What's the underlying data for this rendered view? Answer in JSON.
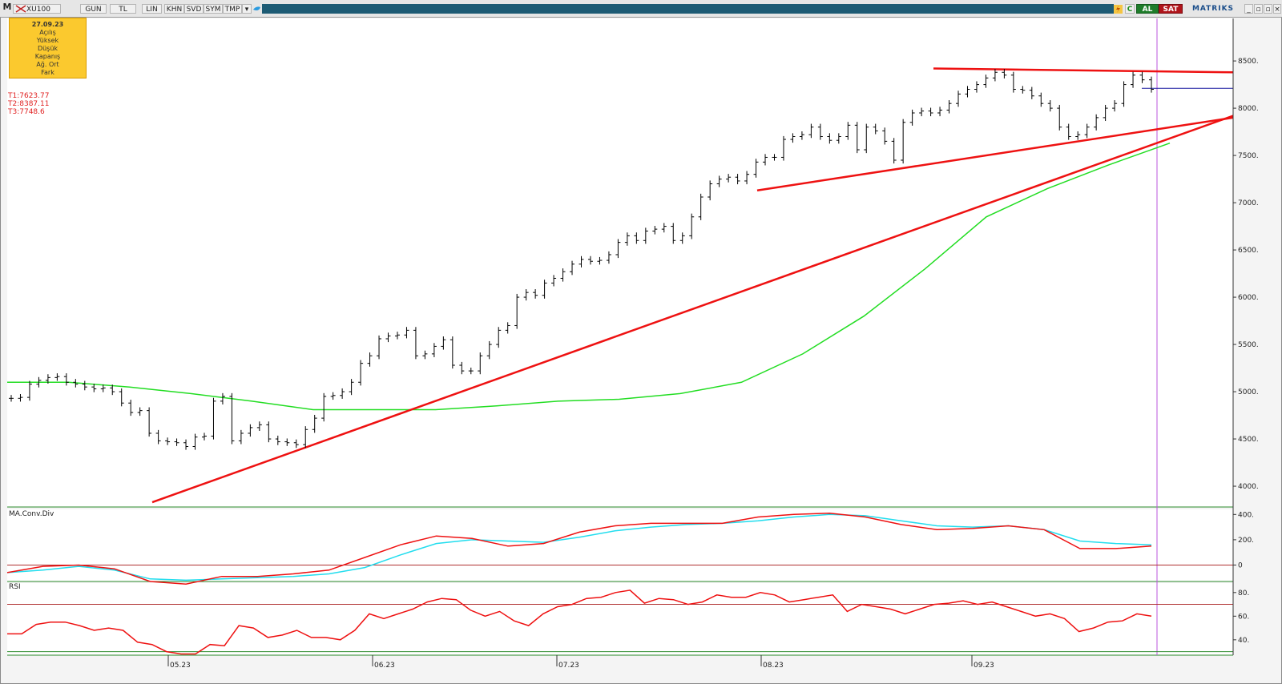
{
  "toolbar": {
    "symbol": "XU100",
    "buttons": [
      "GUN",
      "TL",
      "LIN",
      "KHN",
      "SVD",
      "SYM",
      "TMP"
    ],
    "al_label": "AL",
    "sat_label": "SAT",
    "brand": "MATRIKS"
  },
  "info_box": {
    "date": "27.09.23",
    "fields": [
      "Açılış",
      "Yüksek",
      "Düşük",
      "Kapanış",
      "Ağ. Ort",
      "Fark"
    ]
  },
  "targets": [
    "T1:7623.77",
    "T2:8387.11",
    "T3:7748.6"
  ],
  "panels": {
    "macd_label": "MA.Conv.Div",
    "rsi_label": "RSI"
  },
  "colors": {
    "price_bars": "#000000",
    "ma": "#22dd22",
    "trend": "#ee1111",
    "macd": "#ee1111",
    "signal": "#22ddee",
    "cursor": "#bb55dd",
    "hline": "#1a1aa0"
  },
  "chart_data": [
    {
      "type": "ohlc",
      "title": "XU100",
      "x_labels": [
        "05.23",
        "06.23",
        "07.23",
        "08.23",
        "09.23"
      ],
      "yticks": [
        4000,
        4500,
        5000,
        5500,
        6000,
        6500,
        7000,
        7500,
        8000,
        8500
      ],
      "ylim": [
        3780,
        8950
      ],
      "series": [
        {
          "name": "price_close",
          "values": [
            4930,
            4940,
            5080,
            5120,
            5150,
            5160,
            5100,
            5080,
            5050,
            5030,
            5040,
            5000,
            4880,
            4780,
            4800,
            4560,
            4480,
            4470,
            4460,
            4420,
            4520,
            4530,
            4900,
            4950,
            4480,
            4560,
            4620,
            4650,
            4500,
            4470,
            4460,
            4440,
            4600,
            4720,
            4950,
            4960,
            5000,
            5100,
            5300,
            5380,
            5560,
            5590,
            5600,
            5650,
            5380,
            5400,
            5480,
            5550,
            5280,
            5220,
            5220,
            5380,
            5500,
            5650,
            5700,
            6000,
            6050,
            6020,
            6150,
            6200,
            6270,
            6350,
            6400,
            6380,
            6390,
            6450,
            6580,
            6650,
            6600,
            6700,
            6720,
            6750,
            6600,
            6650,
            6850,
            7060,
            7200,
            7250,
            7270,
            7230,
            7300,
            7430,
            7480,
            7480,
            7670,
            7700,
            7720,
            7800,
            7700,
            7660,
            7700,
            7820,
            7560,
            7800,
            7760,
            7650,
            7450,
            7850,
            7950,
            7970,
            7950,
            7980,
            8050,
            8150,
            8200,
            8250,
            8320,
            8380,
            8350,
            8200,
            8190,
            8130,
            8050,
            8000,
            7800,
            7700,
            7720,
            7800,
            7900,
            8000,
            8050,
            8250,
            8350,
            8300,
            8200
          ]
        },
        {
          "name": "MA",
          "values": [
            5100,
            5100,
            5050,
            4980,
            4900,
            4810,
            4810,
            4810,
            4850,
            4900,
            4920,
            4980,
            5100,
            5400,
            5800,
            6300,
            6850,
            7150,
            7400,
            7630
          ]
        },
        {
          "name": "trend_support",
          "values": [
            3830,
            7920
          ]
        },
        {
          "name": "trend_upper",
          "values": [
            7130,
            7900
          ]
        },
        {
          "name": "trend_top",
          "values": [
            8420,
            8380
          ]
        }
      ]
    },
    {
      "type": "line",
      "title": "MA.Conv.Div",
      "yticks": [
        0,
        200,
        400
      ],
      "ylim": [
        -130,
        440
      ],
      "series": [
        {
          "name": "MACD",
          "values": [
            -60,
            -10,
            0,
            -30,
            -130,
            -150,
            -90,
            -90,
            -70,
            -40,
            60,
            160,
            230,
            210,
            150,
            170,
            260,
            310,
            330,
            330,
            330,
            380,
            400,
            410,
            380,
            320,
            280,
            290,
            310,
            280,
            130,
            130,
            150
          ]
        },
        {
          "name": "Signal",
          "values": [
            -60,
            -40,
            -10,
            -40,
            -110,
            -120,
            -110,
            -100,
            -90,
            -70,
            -20,
            80,
            170,
            200,
            190,
            180,
            220,
            270,
            300,
            320,
            330,
            350,
            380,
            400,
            390,
            350,
            310,
            300,
            310,
            280,
            190,
            170,
            160
          ]
        }
      ]
    },
    {
      "type": "line",
      "title": "RSI",
      "yticks": [
        40,
        60,
        80
      ],
      "ylim": [
        27,
        88
      ],
      "levels": [
        70,
        30
      ],
      "series": [
        {
          "name": "RSI",
          "values": [
            45,
            45,
            53,
            55,
            55,
            52,
            48,
            50,
            48,
            38,
            36,
            30,
            28,
            28,
            36,
            35,
            52,
            50,
            42,
            44,
            48,
            42,
            42,
            40,
            48,
            62,
            58,
            62,
            66,
            72,
            75,
            74,
            65,
            60,
            64,
            56,
            52,
            62,
            68,
            70,
            75,
            76,
            80,
            82,
            71,
            75,
            74,
            70,
            72,
            78,
            76,
            76,
            80,
            78,
            72,
            74,
            76,
            78,
            64,
            70,
            68,
            66,
            62,
            66,
            70,
            71,
            73,
            70,
            72,
            68,
            64,
            60,
            62,
            58,
            47,
            50,
            55,
            56,
            62,
            60
          ]
        }
      ]
    }
  ]
}
